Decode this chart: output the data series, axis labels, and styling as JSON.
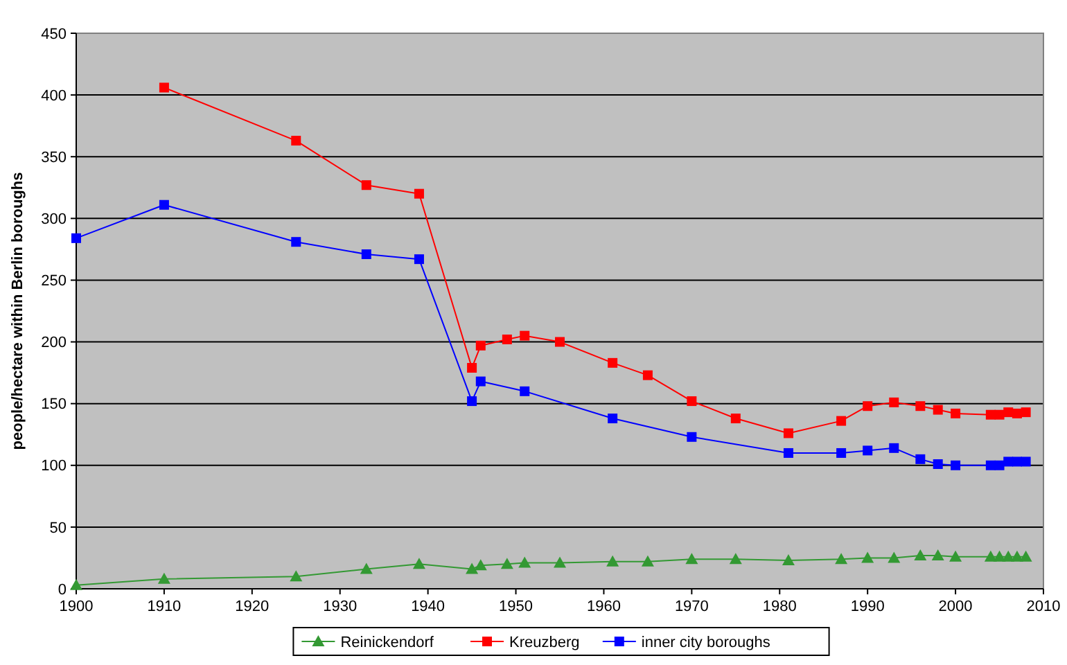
{
  "chart_data": {
    "type": "line",
    "ylabel": "people/hectare within Berlin boroughs",
    "xlim": [
      1900,
      2010
    ],
    "xticks": [
      1900,
      1910,
      1920,
      1930,
      1940,
      1950,
      1960,
      1970,
      1980,
      1990,
      2000,
      2010
    ],
    "ylim": [
      0,
      450
    ],
    "yticks": [
      0,
      50,
      100,
      150,
      200,
      250,
      300,
      350,
      400,
      450
    ],
    "grid": "y",
    "legend": "bottom",
    "series": [
      {
        "name": "Reinickendorf",
        "color": "#339933",
        "marker": "triangle",
        "x": [
          1900,
          1910,
          1925,
          1933,
          1939,
          1945,
          1946,
          1949,
          1951,
          1955,
          1961,
          1965,
          1970,
          1975,
          1981,
          1987,
          1990,
          1993,
          1996,
          1998,
          2000,
          2004,
          2005,
          2006,
          2007,
          2008
        ],
        "values": [
          3,
          8,
          10,
          16,
          20,
          16,
          19,
          20,
          21,
          21,
          22,
          22,
          24,
          24,
          23,
          24,
          25,
          25,
          27,
          27,
          26,
          26,
          26,
          26,
          26,
          26
        ]
      },
      {
        "name": "Kreuzberg",
        "color": "#ff0000",
        "marker": "square",
        "x": [
          1910,
          1925,
          1933,
          1939,
          1945,
          1946,
          1949,
          1951,
          1955,
          1961,
          1965,
          1970,
          1975,
          1981,
          1987,
          1990,
          1993,
          1996,
          1998,
          2000,
          2004,
          2005,
          2006,
          2007,
          2008
        ],
        "values": [
          406,
          363,
          327,
          320,
          179,
          197,
          202,
          205,
          200,
          183,
          173,
          152,
          138,
          126,
          136,
          148,
          151,
          148,
          145,
          142,
          141,
          141,
          143,
          142,
          143
        ]
      },
      {
        "name": "inner city boroughs",
        "color": "#0000ff",
        "marker": "square",
        "x": [
          1900,
          1910,
          1925,
          1933,
          1939,
          1945,
          1946,
          1951,
          1961,
          1970,
          1981,
          1987,
          1990,
          1993,
          1996,
          1998,
          2000,
          2004,
          2005,
          2006,
          2007,
          2008
        ],
        "values": [
          284,
          311,
          281,
          271,
          267,
          152,
          168,
          160,
          138,
          123,
          110,
          110,
          112,
          114,
          105,
          101,
          100,
          100,
          100,
          103,
          103,
          103
        ]
      }
    ]
  }
}
